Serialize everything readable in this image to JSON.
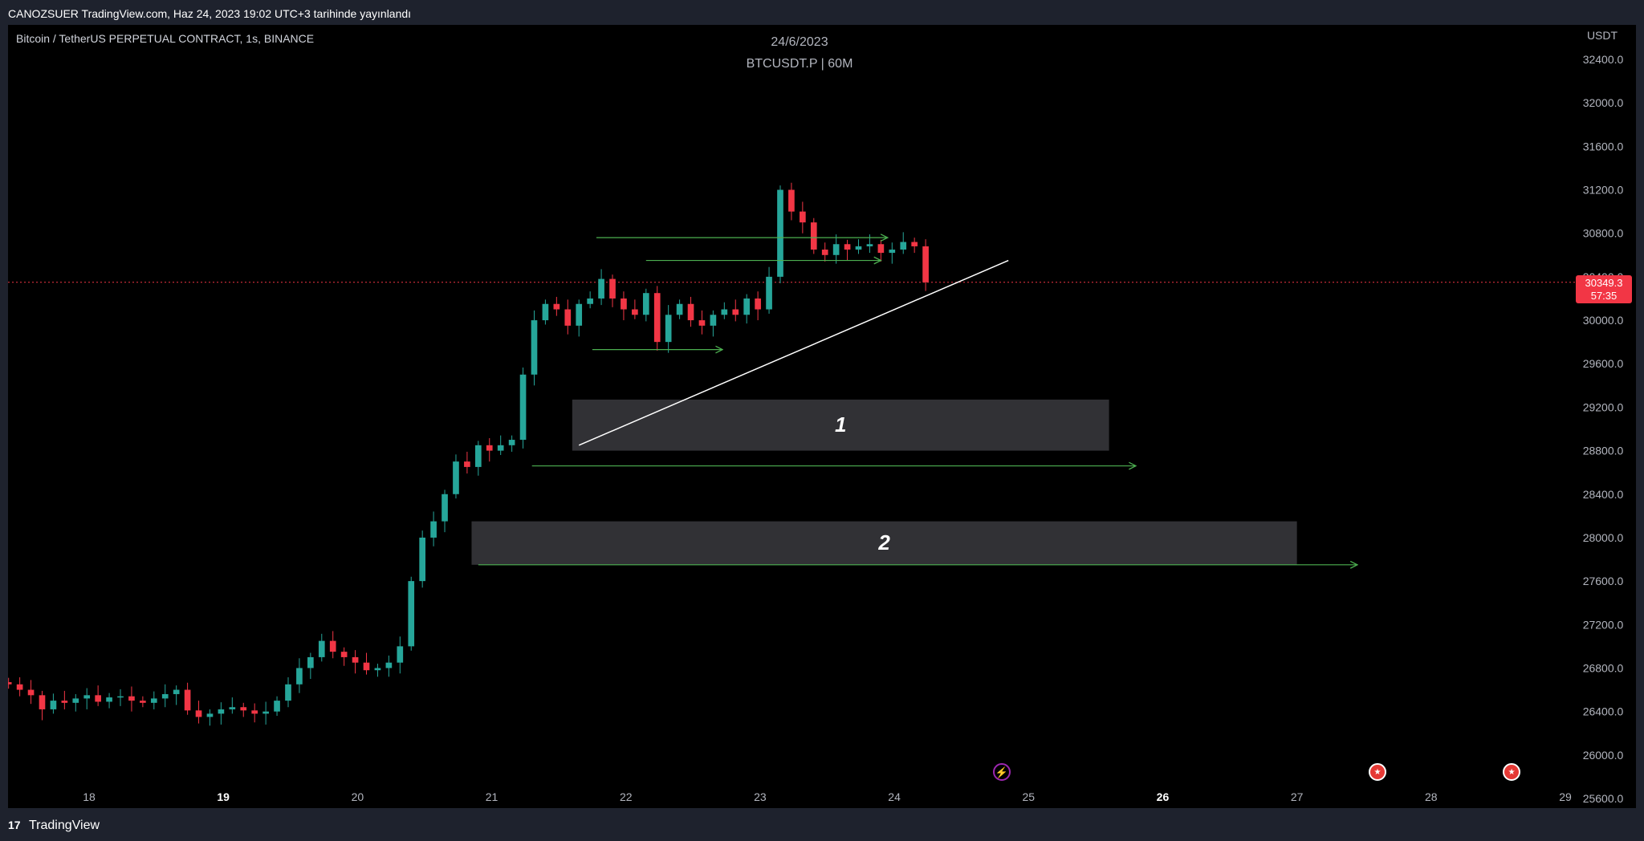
{
  "header": {
    "publish_text": "CANOZSUER TradingView.com, Haz 24, 2023 19:02 UTC+3 tarihinde yayınlandı"
  },
  "chart": {
    "symbol_label": "Bitcoin / TetherUS PERPETUAL CONTRACT, 1s, BINANCE",
    "center_date": "24/6/2023",
    "center_ticker": "BTCUSDT.P | 60M",
    "currency": "USDT",
    "current_price": "30349.3",
    "countdown": "57:35",
    "zone_labels": [
      "1",
      "2"
    ]
  },
  "footer": {
    "logo_icon": "17",
    "logo_text": "TradingView"
  },
  "colors": {
    "up": "#26a69a",
    "down": "#f23645",
    "arrow": "#4caf50",
    "zone": "#3a3a3e",
    "trendline": "#ffffff",
    "price_line": "#f23645"
  },
  "events": [
    {
      "type": "bolt-icon",
      "x": 24.8
    },
    {
      "type": "us-flag-icon",
      "x": 27.6
    },
    {
      "type": "us-flag-icon",
      "x": 28.6
    }
  ],
  "chart_data": {
    "type": "candlestick",
    "title": "BTCUSDT.P | 60M",
    "x_unit": "day of June 2023",
    "xlim": [
      17.4,
      29
    ],
    "ylim": [
      25600,
      32600
    ],
    "x_ticks": [
      "18",
      "19",
      "20",
      "21",
      "22",
      "23",
      "24",
      "25",
      "26",
      "27",
      "28",
      "29"
    ],
    "x_tick_bold": [
      "19",
      "26"
    ],
    "y_ticks": [
      32400,
      32000,
      31600,
      31200,
      30800,
      30400,
      30000,
      29600,
      29200,
      28800,
      28400,
      28000,
      27600,
      27200,
      26800,
      26400,
      26000,
      25600
    ],
    "close_series_x_start": 17.4,
    "close_series_step_hours": 2,
    "close_series": [
      26650,
      26600,
      26550,
      26420,
      26500,
      26480,
      26520,
      26550,
      26490,
      26530,
      26540,
      26500,
      26480,
      26520,
      26560,
      26600,
      26410,
      26350,
      26380,
      26420,
      26440,
      26410,
      26380,
      26400,
      26500,
      26650,
      26800,
      26900,
      27050,
      26950,
      26900,
      26850,
      26780,
      26800,
      26850,
      27000,
      27600,
      28000,
      28150,
      28400,
      28700,
      28650,
      28850,
      28800,
      28850,
      28900,
      29500,
      30000,
      30150,
      30100,
      29950,
      30150,
      30200,
      30380,
      30200,
      30100,
      30050,
      30250,
      29800,
      30050,
      30150,
      30000,
      29950,
      30050,
      30100,
      30050,
      30200,
      30100,
      30400,
      31200,
      31000,
      30900,
      30650,
      30600,
      30700,
      30650,
      30680,
      30700,
      30620,
      30650,
      30720,
      30680,
      30349
    ],
    "zones": [
      {
        "label": "1",
        "x0": 21.6,
        "x1": 25.6,
        "y0": 28800,
        "y1": 29270
      },
      {
        "label": "2",
        "x0": 20.85,
        "x1": 27.0,
        "y0": 27750,
        "y1": 28150
      }
    ],
    "trendline": {
      "x0": 21.65,
      "y0": 28850,
      "x1": 24.85,
      "y1": 30550
    },
    "arrows": [
      {
        "x0": 21.3,
        "x1": 25.8,
        "y": 28660
      },
      {
        "x0": 20.9,
        "x1": 27.45,
        "y": 27750
      },
      {
        "x0": 21.75,
        "x1": 22.72,
        "y": 29730
      },
      {
        "x0": 22.15,
        "x1": 23.9,
        "y": 30550
      },
      {
        "x0": 21.78,
        "x1": 23.95,
        "y": 30760
      }
    ],
    "current_price": 30349.3
  }
}
